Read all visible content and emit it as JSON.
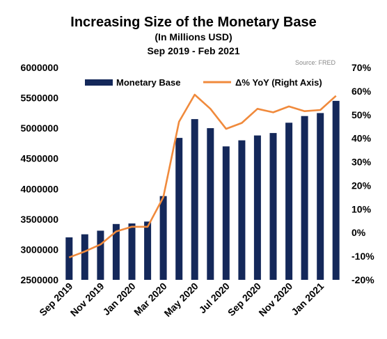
{
  "chart_data": {
    "type": "bar",
    "title": "Increasing Size of the Monetary Base",
    "subtitle": "(In Millions USD)",
    "date_range": "Sep 2019 - Feb 2021",
    "source": "Source:  FRED",
    "categories": [
      "Sep 2019",
      "Oct 2019",
      "Nov 2019",
      "Dec 2019",
      "Jan 2020",
      "Feb 2020",
      "Mar 2020",
      "Apr 2020",
      "May 2020",
      "Jun 2020",
      "Jul 2020",
      "Aug 2020",
      "Sep 2020",
      "Oct 2020",
      "Nov 2020",
      "Dec 2020",
      "Jan 2021",
      "Feb 2021"
    ],
    "x_tick_labels": [
      "Sep 2019",
      "Nov 2019",
      "Jan 2020",
      "Mar 2020",
      "May 2020",
      "Jul 2020",
      "Sep 2020",
      "Nov 2020",
      "Jan 2021"
    ],
    "series": [
      {
        "name": "Monetary Base",
        "type": "bar",
        "axis": "left",
        "color": "#14285a",
        "values": [
          3200000,
          3250000,
          3310000,
          3420000,
          3430000,
          3460000,
          3880000,
          4840000,
          5150000,
          5000000,
          4700000,
          4800000,
          4880000,
          4920000,
          5090000,
          5200000,
          5250000,
          5450000
        ]
      },
      {
        "name": "Δ% YoY (Right Axis)",
        "type": "line",
        "axis": "right",
        "color": "#f08a3c",
        "values": [
          -10.5,
          -8,
          -5,
          0.5,
          2.5,
          2.5,
          15,
          47,
          58.5,
          52.5,
          44,
          46.5,
          52.5,
          51,
          53.5,
          51.5,
          52,
          58
        ]
      }
    ],
    "y_left": {
      "ylim": [
        2500000,
        6000000
      ],
      "ticks": [
        "2500000",
        "3000000",
        "3500000",
        "4000000",
        "4500000",
        "5000000",
        "5500000",
        "6000000"
      ]
    },
    "y_right": {
      "ylim": [
        -20,
        70
      ],
      "ticks": [
        "-20%",
        "-10%",
        "0%",
        "10%",
        "20%",
        "30%",
        "40%",
        "50%",
        "60%",
        "70%"
      ]
    },
    "legend": {
      "position": "top",
      "items": [
        "Monetary Base",
        "Δ% YoY (Right Axis)"
      ]
    },
    "grid": false
  }
}
